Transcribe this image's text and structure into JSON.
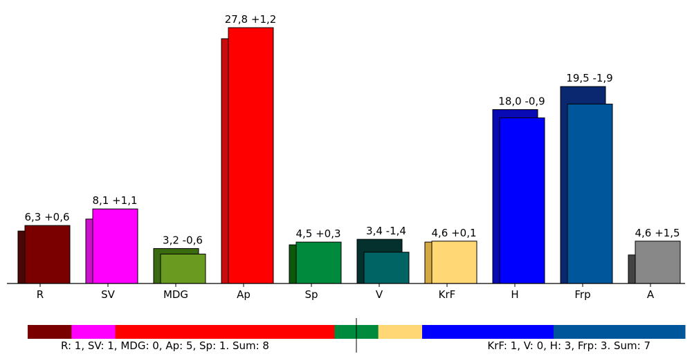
{
  "chart_data": [
    {
      "type": "bar",
      "title": "",
      "xlabel": "",
      "ylabel": "",
      "ylim": [
        0,
        30
      ],
      "categories": [
        "R",
        "SV",
        "MDG",
        "Ap",
        "Sp",
        "V",
        "KrF",
        "H",
        "Frp",
        "A"
      ],
      "series": [
        {
          "values": [
            5.7,
            7.0,
            3.8,
            26.6,
            4.2,
            4.8,
            4.5,
            18.9,
            21.4,
            3.1
          ]
        },
        {
          "values": [
            6.3,
            8.1,
            3.2,
            27.8,
            4.5,
            3.4,
            4.6,
            18.0,
            19.5,
            4.6
          ]
        }
      ],
      "bar_labels": [
        "6,3 +0,6",
        "8,1 +1,1",
        "3,2 -0,6",
        "27,8 +1,2",
        "4,5 +0,3",
        "3,4 -1,4",
        "4,6 +0,1",
        "18,0 -0,9",
        "19,5 -1,9",
        "4,6 +1,5"
      ],
      "colors": {
        "previous": [
          "#4a0505",
          "#cc10cc",
          "#3a6b10",
          "#cc0a0a",
          "#0a5a0a",
          "#04302e",
          "#d4a843",
          "#0a0ab4",
          "#0a2870",
          "#444444"
        ],
        "current": [
          "#7a0000",
          "#ff00ff",
          "#6b9a20",
          "#ff0000",
          "#008a3e",
          "#006464",
          "#ffd775",
          "#0000ff",
          "#00569a",
          "#888888"
        ]
      }
    },
    {
      "type": "bar",
      "title": "",
      "orientation": "horizontal-stacked",
      "segments": [
        {
          "name": "R",
          "value": 1,
          "color": "#7a0000"
        },
        {
          "name": "SV",
          "value": 1,
          "color": "#ff00ff"
        },
        {
          "name": "Ap",
          "value": 5,
          "color": "#ff0000"
        },
        {
          "name": "Sp",
          "value": 1,
          "color": "#008a3e"
        },
        {
          "name": "KrF",
          "value": 1,
          "color": "#ffd775"
        },
        {
          "name": "H",
          "value": 3,
          "color": "#0000ff"
        },
        {
          "name": "Frp",
          "value": 3,
          "color": "#00569a"
        }
      ],
      "left_summary": "R: 1, SV: 1, MDG: 0, Ap: 5, Sp: 1. Sum: 8",
      "right_summary": "KrF: 1, V: 0, H: 3, Frp: 3. Sum: 7"
    }
  ]
}
